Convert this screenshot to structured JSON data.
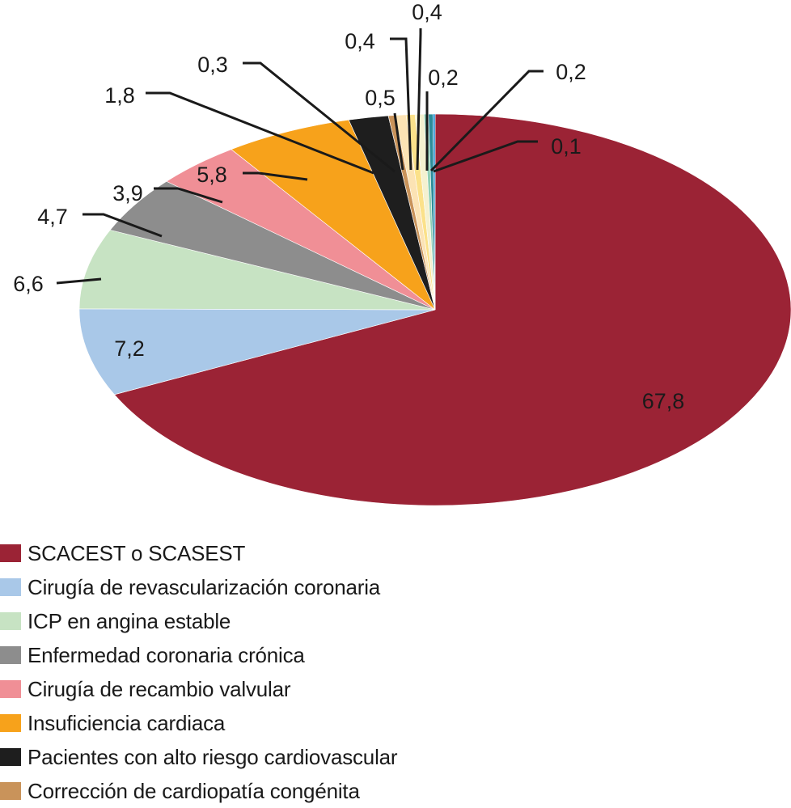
{
  "chart_data": {
    "type": "pie",
    "slices": [
      {
        "name": "SCACEST o SCASEST",
        "value": 67.8,
        "label": "67,8",
        "color": "#9b2335"
      },
      {
        "name": "Cirugía de revascularización coronaria",
        "value": 7.2,
        "label": "7,2",
        "color": "#a9c8e8"
      },
      {
        "name": "ICP en angina estable",
        "value": 6.6,
        "label": "6,6",
        "color": "#c7e3c3"
      },
      {
        "name": "Enfermedad coronaria crónica",
        "value": 4.7,
        "label": "4,7",
        "color": "#8d8d8d"
      },
      {
        "name": "Cirugía de recambio valvular",
        "value": 3.9,
        "label": "3,9",
        "color": "#f08f96"
      },
      {
        "name": "Insuficiencia cardiaca",
        "value": 5.8,
        "label": "5,8",
        "color": "#f7a21b"
      },
      {
        "name": "Pacientes con alto riesgo cardiovascular",
        "value": 1.8,
        "label": "1,8",
        "color": "#1e1e1e"
      },
      {
        "name": "Corrección de cardiopatía congénita",
        "value": 0.3,
        "label": "0,3",
        "color": "#c9935a"
      },
      {
        "name": "",
        "value": 0.5,
        "label": "0,5",
        "color": "#fce3b4"
      },
      {
        "name": "",
        "value": 0.4,
        "label": "0,4",
        "color": "#fbe18a"
      },
      {
        "name": "",
        "value": 0.4,
        "label": "0,4",
        "color": "#f4f1d0"
      },
      {
        "name": "",
        "value": 0.2,
        "label": "0,2",
        "color": "#8fcfb5"
      },
      {
        "name": "",
        "value": 0.2,
        "label": "0,2",
        "color": "#2c8c99"
      },
      {
        "name": "",
        "value": 0.1,
        "label": "0,1",
        "color": "#1e8fd0"
      }
    ],
    "legend": {
      "position": "bottom-left",
      "items": [
        {
          "label": "SCACEST o SCASEST",
          "color": "#9b2335"
        },
        {
          "label": "Cirugía de revascularización coronaria",
          "color": "#a9c8e8"
        },
        {
          "label": "ICP en angina estable",
          "color": "#c7e3c3"
        },
        {
          "label": "Enfermedad coronaria crónica",
          "color": "#8d8d8d"
        },
        {
          "label": "Cirugía de recambio valvular",
          "color": "#f08f96"
        },
        {
          "label": "Insuficiencia cardiaca",
          "color": "#f7a21b"
        },
        {
          "label": "Pacientes con alto riesgo cardiovascular",
          "color": "#1e1e1e"
        },
        {
          "label": "Corrección de cardiopatía congénita",
          "color": "#c9935a"
        }
      ]
    }
  }
}
